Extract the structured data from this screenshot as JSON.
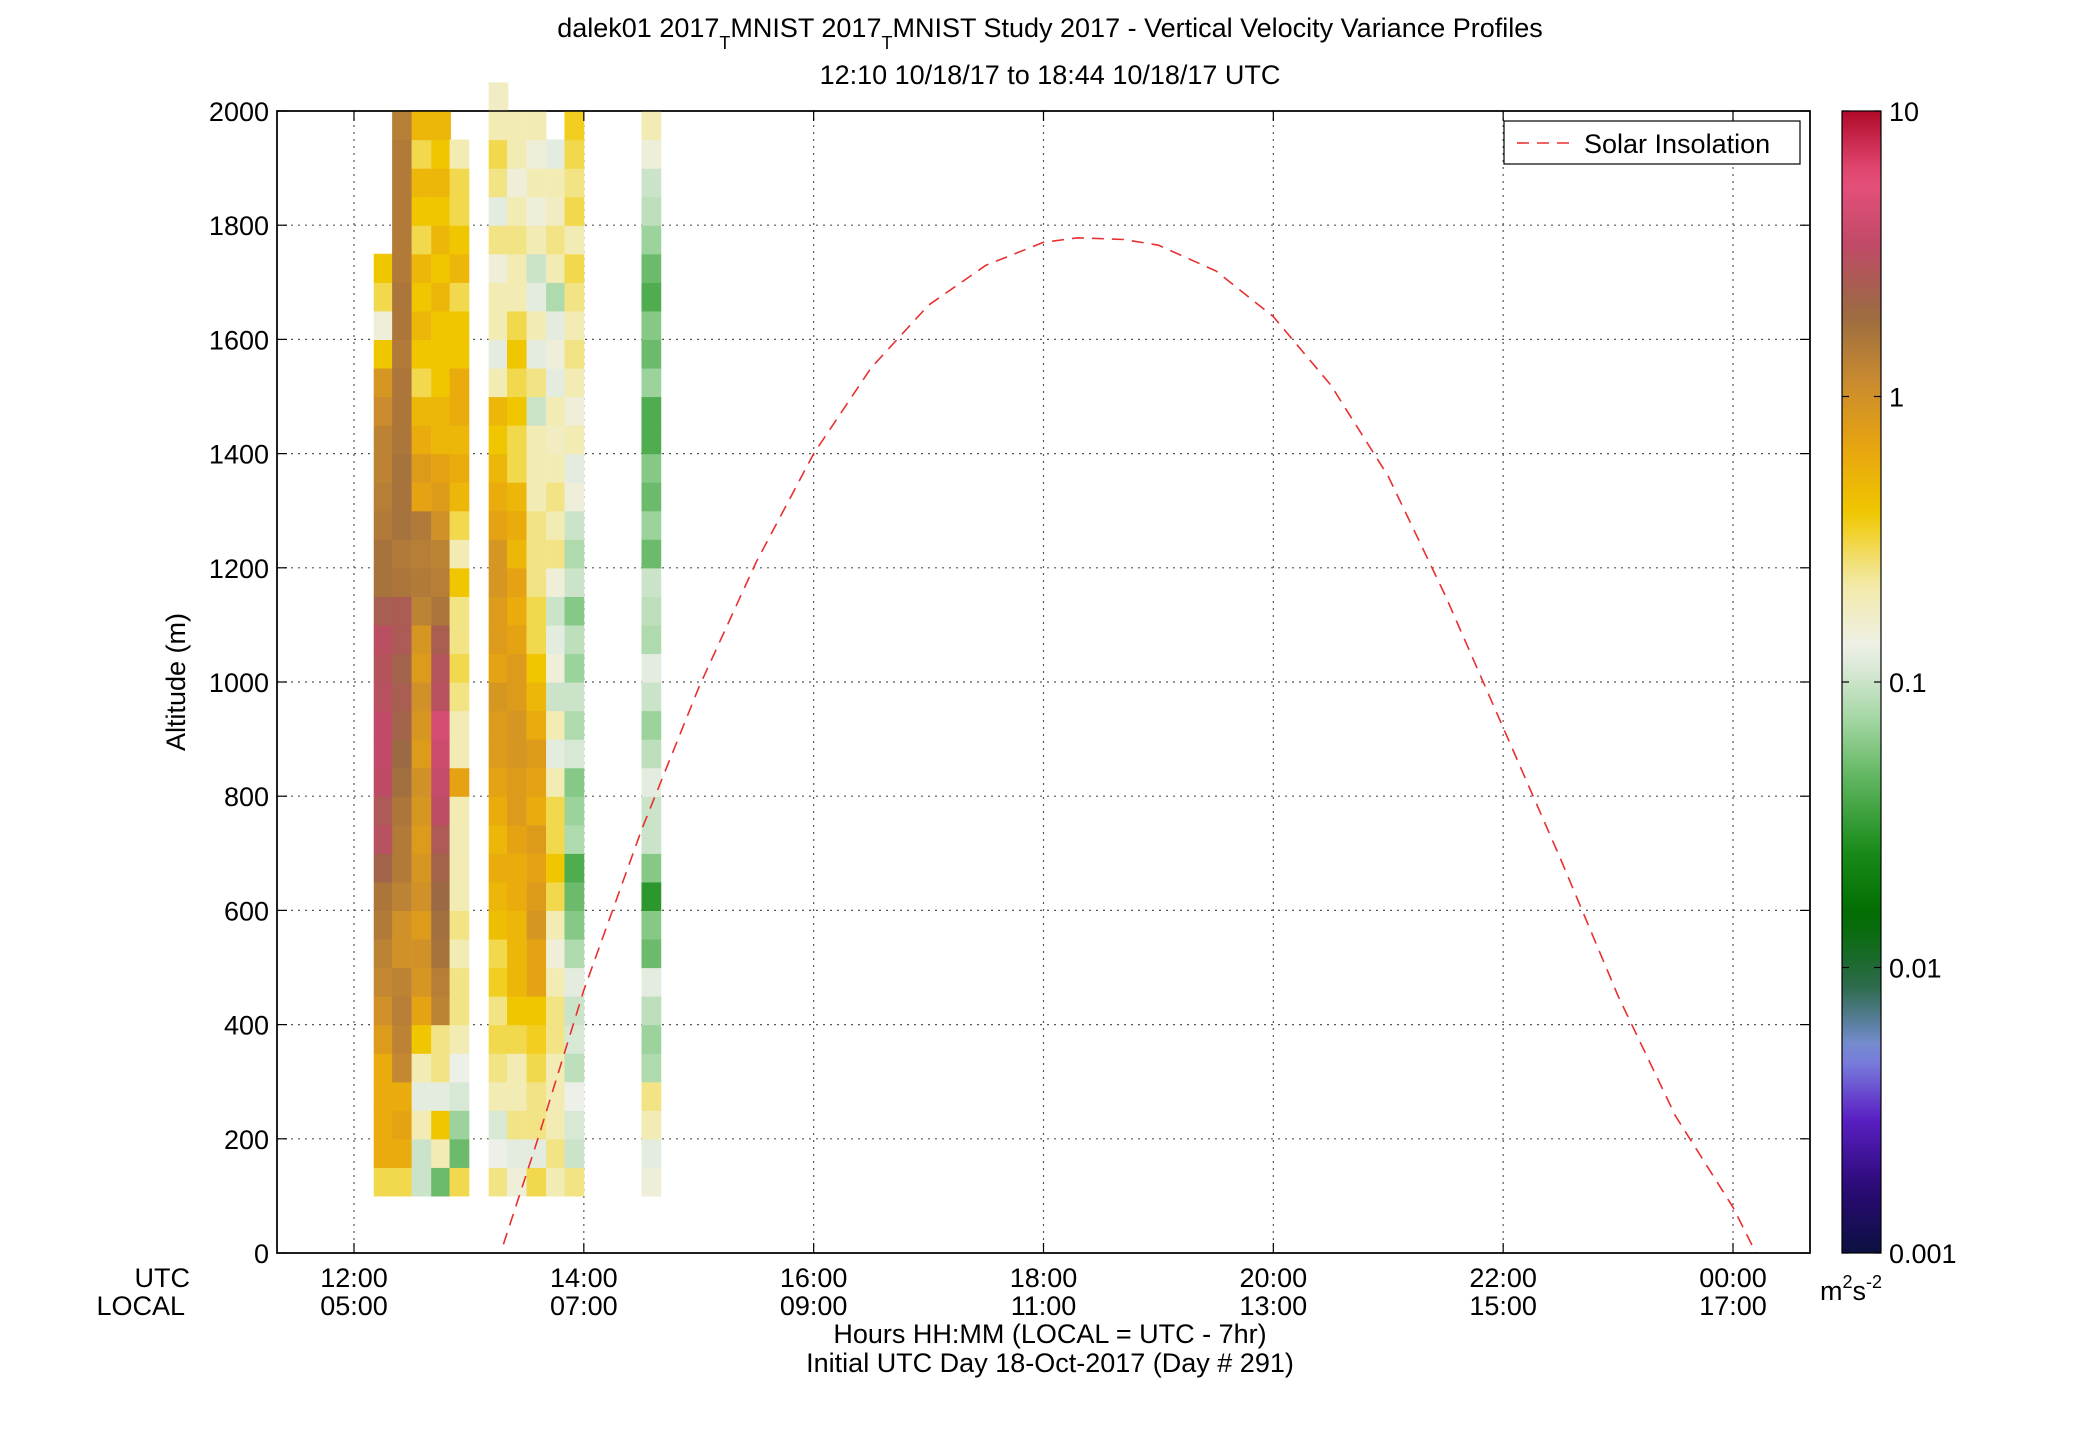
{
  "chart_data": {
    "type": "heatmap",
    "title_parts": {
      "t1": "dalek01 2017",
      "s1": "T",
      "t2": "MNIST 2017",
      "s2": "T",
      "t3": "MNIST Study 2017 - Vertical Velocity Variance Profiles"
    },
    "subtitle": "12:10 10/18/17 to 18:44 10/18/17  UTC",
    "ylabel": "Altitude (m)",
    "xlabel": "Hours HH:MM  (LOCAL = UTC - 7hr)",
    "xlabel2": "Initial UTC Day 18-Oct-2017 (Day # 291)",
    "x_row_label_utc": "UTC",
    "x_row_label_local": "LOCAL",
    "xlim_hours_utc": [
      11.33,
      24.67
    ],
    "ylim": [
      0,
      2000
    ],
    "grid": true,
    "legend_position": "top-right",
    "x_ticks": [
      {
        "hour": 12,
        "utc": "12:00",
        "local": "05:00"
      },
      {
        "hour": 14,
        "utc": "14:00",
        "local": "07:00"
      },
      {
        "hour": 16,
        "utc": "16:00",
        "local": "09:00"
      },
      {
        "hour": 18,
        "utc": "18:00",
        "local": "11:00"
      },
      {
        "hour": 20,
        "utc": "20:00",
        "local": "13:00"
      },
      {
        "hour": 22,
        "utc": "22:00",
        "local": "15:00"
      },
      {
        "hour": 24,
        "utc": "00:00",
        "local": "17:00"
      }
    ],
    "y_ticks": [
      0,
      200,
      400,
      600,
      800,
      1000,
      1200,
      1400,
      1600,
      1800,
      2000
    ],
    "y_tick_labels": [
      "0",
      "200",
      "400",
      "600",
      "800",
      "1000",
      "1200",
      "1400",
      "1600",
      "1800",
      "2000"
    ],
    "colorbar": {
      "scale": "log",
      "min": 0.001,
      "max": 10,
      "tick_values": [
        10,
        1,
        0.1,
        0.01,
        0.001
      ],
      "tick_labels": [
        "10",
        "1",
        "0.1",
        "0.01",
        "0.001"
      ],
      "unit_base": "m",
      "unit_sup1": "2",
      "unit_mid": "s",
      "unit_sup2": "-2",
      "colors": [
        "#0b1040",
        "#2c0a78",
        "#5a1fc4",
        "#7e8fe0",
        "#2a6a47",
        "#006b00",
        "#1a8c1a",
        "#5bb35b",
        "#a8d8a8",
        "#eef0ea",
        "#f3e9a4",
        "#f0c800",
        "#e8a410",
        "#c88a30",
        "#9a6a42",
        "#c04a68",
        "#e8507c",
        "#b00a28"
      ]
    },
    "heatmap": {
      "time_step_hours": 0.1667,
      "altitude_step_m": 50,
      "altitude_start_m": 100,
      "columns": [
        {
          "t": 12.17,
          "values": [
            0.3,
            0.6,
            0.6,
            0.6,
            0.6,
            0.8,
            1.0,
            1.2,
            1.3,
            1.5,
            1.6,
            2.2,
            3.0,
            2.6,
            3.3,
            3.5,
            3.4,
            3.0,
            2.9,
            3.1,
            2.4,
            1.7,
            1.7,
            1.5,
            1.4,
            1.3,
            1.3,
            1.1,
            0.9,
            0.4,
            0.15,
            0.3,
            0.4
          ]
        },
        {
          "t": 12.33,
          "values": [
            0.3,
            0.6,
            0.7,
            0.6,
            1.2,
            1.3,
            1.4,
            1.3,
            1.0,
            1.0,
            1.3,
            1.5,
            1.5,
            1.6,
            1.8,
            2.0,
            2.2,
            2.4,
            2.2,
            2.6,
            2.5,
            1.6,
            1.5,
            1.7,
            1.7,
            1.7,
            1.6,
            1.6,
            1.6,
            1.5,
            1.6,
            1.6,
            1.5,
            1.5,
            1.5,
            1.5,
            1.5,
            1.4
          ]
        },
        {
          "t": 12.5,
          "values": [
            0.1,
            0.1,
            0.2,
            0.12,
            0.2,
            0.4,
            0.7,
            0.9,
            1.0,
            0.8,
            1.0,
            0.9,
            0.8,
            0.9,
            1.0,
            0.8,
            0.9,
            1.0,
            0.8,
            0.9,
            1.3,
            1.5,
            1.4,
            1.5,
            0.7,
            0.8,
            0.6,
            0.5,
            0.3,
            0.4,
            0.5,
            0.4,
            0.5,
            0.3,
            0.4,
            0.5,
            0.3,
            0.5
          ]
        },
        {
          "t": 12.67,
          "values": [
            0.05,
            0.2,
            0.4,
            0.12,
            0.25,
            0.25,
            1.3,
            1.4,
            1.7,
            1.8,
            2.0,
            2.2,
            2.6,
            3.2,
            3.6,
            4.0,
            4.5,
            3.0,
            2.8,
            2.4,
            1.6,
            1.4,
            1.3,
            1.0,
            0.8,
            0.7,
            0.5,
            0.5,
            0.4,
            0.4,
            0.4,
            0.5,
            0.4,
            0.5,
            0.4,
            0.5,
            0.4,
            0.5
          ]
        },
        {
          "t": 12.83,
          "values": [
            0.3,
            0.05,
            0.07,
            0.11,
            0.13,
            0.2,
            0.25,
            0.25,
            0.2,
            0.25,
            0.2,
            0.2,
            0.2,
            0.2,
            0.7,
            0.2,
            0.2,
            0.25,
            0.3,
            0.25,
            0.25,
            0.4,
            0.2,
            0.3,
            0.5,
            0.6,
            0.5,
            0.6,
            0.6,
            0.4,
            0.4,
            0.3,
            0.5,
            0.4,
            0.3,
            0.3,
            0.2
          ]
        },
        {
          "t": 13.17,
          "values": [
            0.25,
            0.13,
            0.11,
            0.2,
            0.25,
            0.3,
            0.25,
            0.35,
            0.3,
            0.45,
            0.5,
            0.6,
            0.5,
            0.6,
            0.7,
            0.8,
            0.8,
            0.9,
            0.7,
            0.8,
            0.8,
            0.9,
            0.9,
            0.7,
            0.6,
            0.5,
            0.4,
            0.5,
            0.2,
            0.12,
            0.2,
            0.2,
            0.15,
            0.25,
            0.12,
            0.25,
            0.3,
            0.2,
            0.18
          ]
        },
        {
          "t": 13.33,
          "values": [
            0.15,
            0.12,
            0.25,
            0.2,
            0.2,
            0.3,
            0.4,
            0.5,
            0.5,
            0.5,
            0.6,
            0.6,
            0.7,
            0.8,
            0.8,
            0.9,
            0.9,
            0.8,
            0.8,
            0.7,
            0.6,
            0.7,
            0.5,
            0.6,
            0.5,
            0.3,
            0.3,
            0.4,
            0.3,
            0.4,
            0.3,
            0.2,
            0.2,
            0.25,
            0.2,
            0.15,
            0.2,
            0.2
          ]
        },
        {
          "t": 13.5,
          "values": [
            0.3,
            0.12,
            0.25,
            0.25,
            0.3,
            0.35,
            0.4,
            0.7,
            0.7,
            0.9,
            0.8,
            0.7,
            0.8,
            0.6,
            0.7,
            0.8,
            0.6,
            0.5,
            0.4,
            0.3,
            0.3,
            0.25,
            0.25,
            0.25,
            0.2,
            0.2,
            0.2,
            0.1,
            0.25,
            0.12,
            0.2,
            0.12,
            0.1,
            0.2,
            0.15,
            0.2,
            0.15,
            0.2
          ]
        },
        {
          "t": 13.67,
          "values": [
            0.2,
            0.25,
            0.2,
            0.2,
            0.2,
            0.25,
            0.25,
            0.2,
            0.15,
            0.2,
            0.3,
            0.4,
            0.3,
            0.3,
            0.2,
            0.12,
            0.2,
            0.1,
            0.15,
            0.12,
            0.1,
            0.15,
            0.25,
            0.2,
            0.25,
            0.2,
            0.18,
            0.2,
            0.12,
            0.15,
            0.12,
            0.08,
            0.2,
            0.25,
            0.18,
            0.2,
            0.12
          ]
        },
        {
          "t": 13.83,
          "values": [
            0.25,
            0.1,
            0.11,
            0.13,
            0.09,
            0.11,
            0.1,
            0.12,
            0.08,
            0.06,
            0.05,
            0.04,
            0.08,
            0.07,
            0.06,
            0.11,
            0.08,
            0.1,
            0.07,
            0.09,
            0.06,
            0.1,
            0.08,
            0.1,
            0.15,
            0.12,
            0.2,
            0.15,
            0.2,
            0.25,
            0.2,
            0.25,
            0.3,
            0.2,
            0.3,
            0.25,
            0.3,
            0.35
          ]
        },
        {
          "t": 14.5,
          "values": [
            0.15,
            0.12,
            0.2,
            0.25,
            0.08,
            0.07,
            0.09,
            0.12,
            0.05,
            0.06,
            0.03,
            0.06,
            0.1,
            0.1,
            0.12,
            0.09,
            0.07,
            0.1,
            0.12,
            0.08,
            0.09,
            0.1,
            0.05,
            0.07,
            0.05,
            0.06,
            0.04,
            0.04,
            0.07,
            0.05,
            0.06,
            0.04,
            0.05,
            0.07,
            0.09,
            0.1,
            0.15,
            0.2
          ]
        }
      ]
    },
    "series": [
      {
        "name": "Solar Insolation",
        "type": "line",
        "style": "dashed",
        "color": "#e83030",
        "x": [
          13.3,
          13.6,
          14.0,
          14.5,
          15.0,
          15.5,
          16.0,
          16.5,
          17.0,
          17.5,
          18.0,
          18.3,
          18.7,
          19.0,
          19.5,
          20.0,
          20.5,
          21.0,
          21.5,
          22.0,
          22.5,
          23.0,
          23.5,
          24.0,
          24.2
        ],
        "y": [
          15,
          200,
          460,
          740,
          990,
          1210,
          1400,
          1550,
          1660,
          1730,
          1770,
          1778,
          1775,
          1765,
          1720,
          1640,
          1520,
          1360,
          1150,
          920,
          690,
          450,
          240,
          80,
          0
        ]
      }
    ]
  }
}
